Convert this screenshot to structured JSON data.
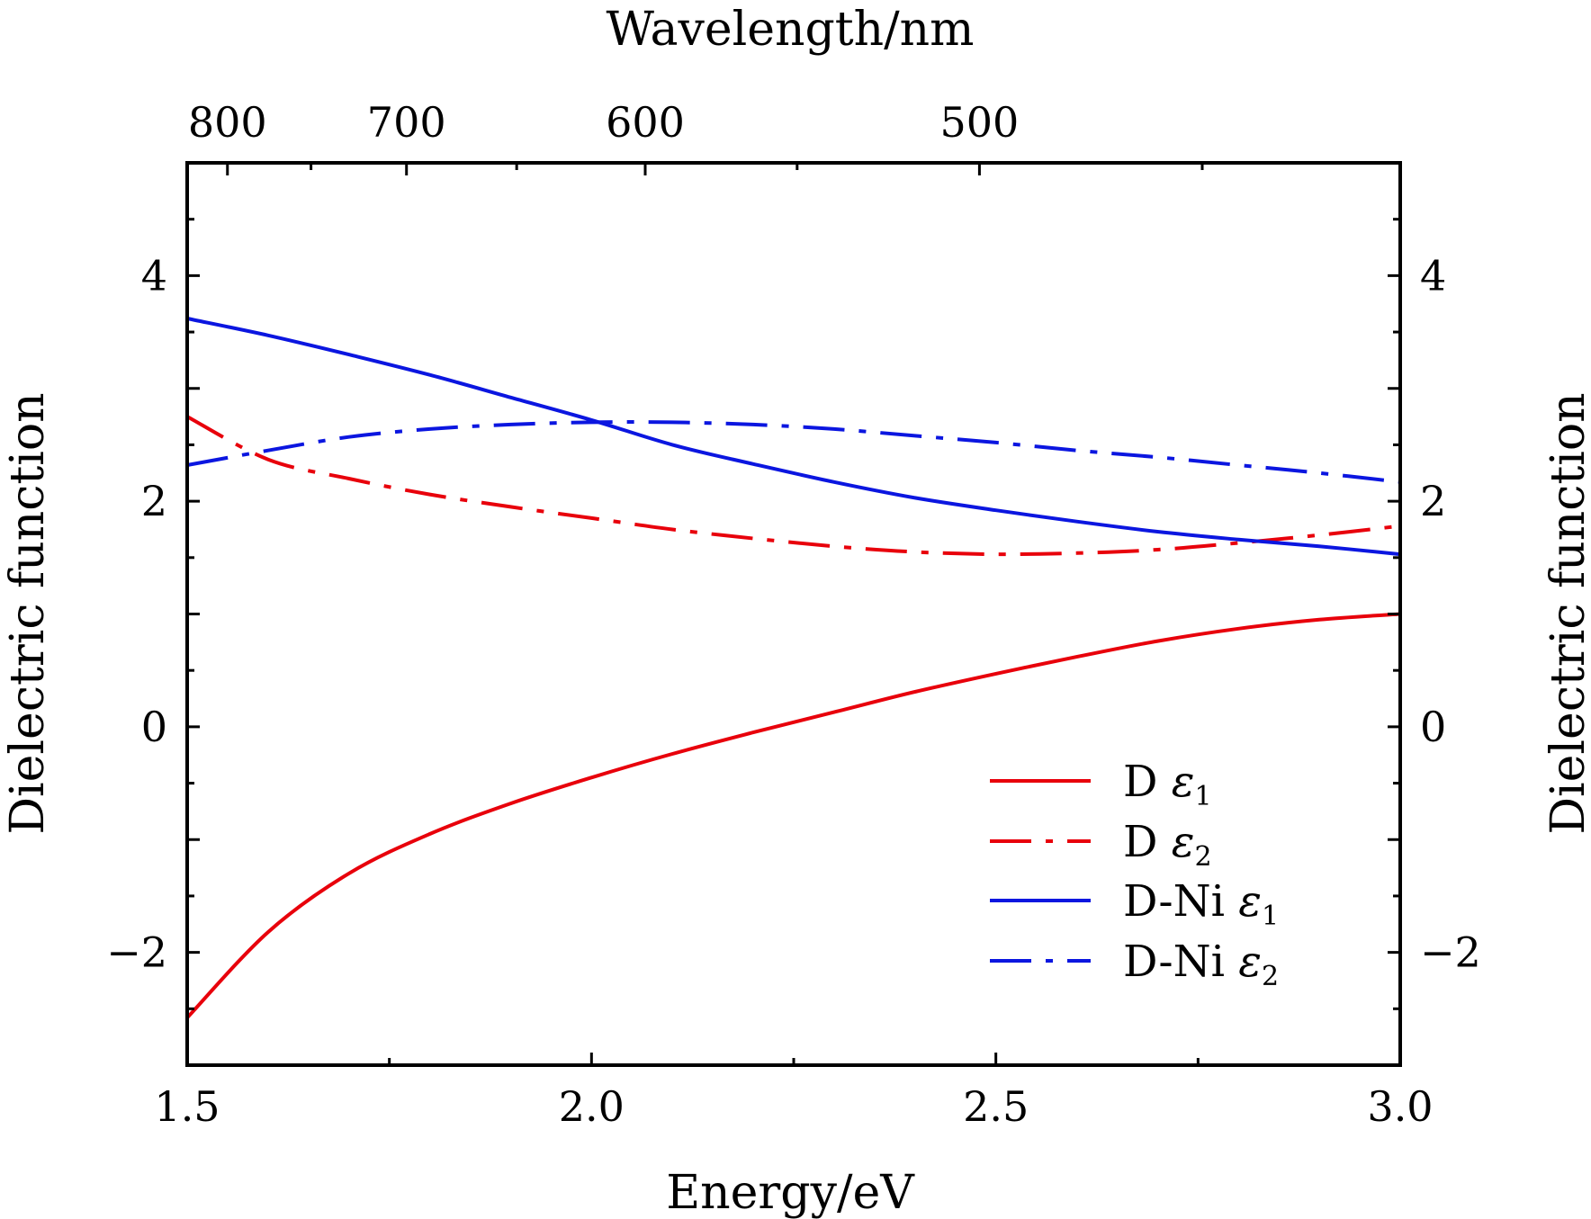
{
  "chart_data": {
    "type": "line",
    "xlabel": "Energy/eV",
    "ylabel": "Dielectric function",
    "top_xlabel": "Wavelength/nm",
    "xlim": [
      1.5,
      3.0
    ],
    "ylim": [
      -3.0,
      5.0
    ],
    "x_ticks": [
      {
        "value": 1.5,
        "label": "1.5"
      },
      {
        "value": 2.0,
        "label": "2.0"
      },
      {
        "value": 2.5,
        "label": "2.5"
      },
      {
        "value": 3.0,
        "label": "3.0"
      }
    ],
    "y_ticks": [
      {
        "value": -2,
        "label": "−2"
      },
      {
        "value": 0,
        "label": "0"
      },
      {
        "value": 2,
        "label": "2"
      },
      {
        "value": 4,
        "label": "4"
      }
    ],
    "right_y_ticks": [
      {
        "value": -2,
        "label": "−2"
      },
      {
        "value": 0,
        "label": "0"
      },
      {
        "value": 2,
        "label": "2"
      },
      {
        "value": 4,
        "label": "4"
      }
    ],
    "top_ticks": [
      {
        "value": 800,
        "label": "800"
      },
      {
        "value": 700,
        "label": "700"
      },
      {
        "value": 600,
        "label": "600"
      },
      {
        "value": 500,
        "label": "500"
      }
    ],
    "grid": false,
    "legend_position": "bottom-right",
    "x": [
      1.5,
      1.6,
      1.7,
      1.8,
      1.9,
      2.0,
      2.1,
      2.2,
      2.3,
      2.4,
      2.5,
      2.6,
      2.7,
      2.8,
      2.9,
      3.0
    ],
    "series": [
      {
        "name": "D",
        "symbol": "ε",
        "subscript": "1",
        "color": "#e8000b",
        "dash": "solid",
        "values": [
          -2.58,
          -1.82,
          -1.3,
          -0.95,
          -0.68,
          -0.45,
          -0.24,
          -0.05,
          0.13,
          0.31,
          0.47,
          0.62,
          0.76,
          0.87,
          0.95,
          1.0
        ]
      },
      {
        "name": "D",
        "symbol": "ε",
        "subscript": "2",
        "color": "#e8000b",
        "dash": "dashdot",
        "values": [
          2.75,
          2.37,
          2.2,
          2.06,
          1.95,
          1.85,
          1.75,
          1.67,
          1.6,
          1.55,
          1.53,
          1.54,
          1.57,
          1.63,
          1.7,
          1.78
        ]
      },
      {
        "name": "D-Ni",
        "symbol": "ε",
        "subscript": "1",
        "color": "#0b16e0",
        "dash": "solid",
        "values": [
          3.62,
          3.47,
          3.3,
          3.12,
          2.92,
          2.72,
          2.5,
          2.33,
          2.17,
          2.03,
          1.92,
          1.82,
          1.73,
          1.66,
          1.6,
          1.53
        ]
      },
      {
        "name": "D-Ni",
        "symbol": "ε",
        "subscript": "2",
        "color": "#0b16e0",
        "dash": "dashdot",
        "values": [
          2.32,
          2.45,
          2.57,
          2.64,
          2.68,
          2.7,
          2.7,
          2.68,
          2.64,
          2.58,
          2.52,
          2.45,
          2.39,
          2.32,
          2.25,
          2.17
        ]
      }
    ]
  }
}
